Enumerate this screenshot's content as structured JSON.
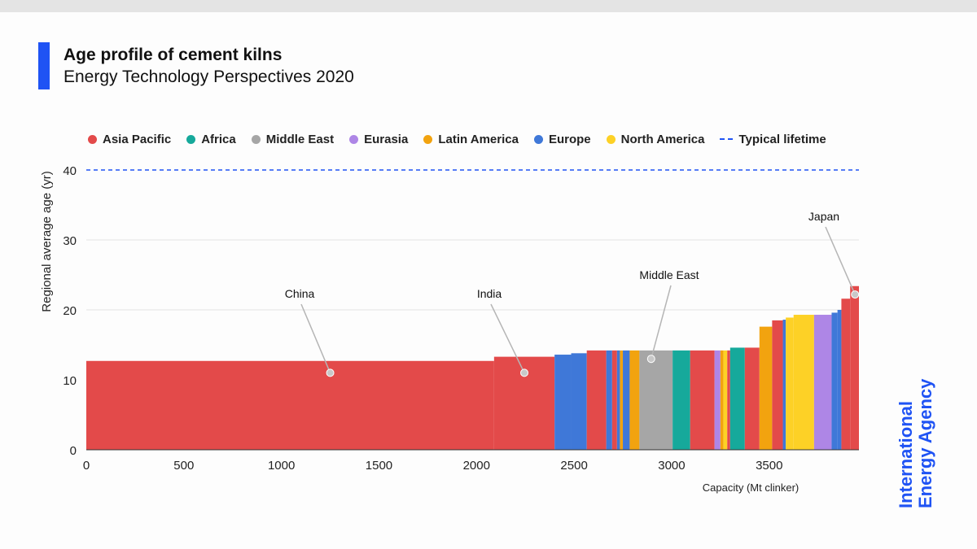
{
  "header": {
    "title": "Age profile of cement kilns",
    "subtitle": "Energy Technology Perspectives 2020"
  },
  "brand": {
    "line1": "International",
    "line2": "Energy Agency"
  },
  "legend": [
    {
      "label": "Asia Pacific",
      "color": "#e34a4a"
    },
    {
      "label": "Africa",
      "color": "#16a99b"
    },
    {
      "label": "Middle East",
      "color": "#a6a6a6"
    },
    {
      "label": "Eurasia",
      "color": "#ae86e6"
    },
    {
      "label": "Latin America",
      "color": "#f2a30f"
    },
    {
      "label": "Europe",
      "color": "#3f78d8"
    },
    {
      "label": "North America",
      "color": "#fdd126"
    },
    {
      "label": "Typical lifetime",
      "color": "#1f53f4",
      "style": "dashed"
    }
  ],
  "chart_data": {
    "type": "bar",
    "subtype": "variable-width (capacity-weighted) bars",
    "title": "Age profile of cement kilns",
    "xlabel": "Capacity (Mt clinker)",
    "ylabel": "Regional average age (yr)",
    "xlim": [
      0,
      3960
    ],
    "ylim": [
      0,
      40
    ],
    "x_ticks": [
      0,
      500,
      1000,
      1500,
      2000,
      2500,
      3000,
      3500
    ],
    "y_ticks": [
      0,
      10,
      20,
      30,
      40
    ],
    "grid": true,
    "legend_position": "top",
    "reference_line": {
      "name": "Typical lifetime",
      "y": 40,
      "style": "dashed",
      "color": "#1f53f4"
    },
    "colors": {
      "Asia Pacific": "#e34a4a",
      "Africa": "#16a99b",
      "Middle East": "#a6a6a6",
      "Eurasia": "#ae86e6",
      "Latin America": "#f2a30f",
      "Europe": "#3f78d8",
      "North America": "#fdd126"
    },
    "bars": [
      {
        "x0": 0,
        "x1": 2090,
        "age": 12.7,
        "region": "Asia Pacific",
        "label": "China"
      },
      {
        "x0": 2090,
        "x1": 2400,
        "age": 13.3,
        "region": "Asia Pacific",
        "label": "India"
      },
      {
        "x0": 2400,
        "x1": 2485,
        "age": 13.6,
        "region": "Europe"
      },
      {
        "x0": 2485,
        "x1": 2565,
        "age": 13.8,
        "region": "Europe"
      },
      {
        "x0": 2565,
        "x1": 2665,
        "age": 14.2,
        "region": "Asia Pacific"
      },
      {
        "x0": 2665,
        "x1": 2695,
        "age": 14.2,
        "region": "Europe"
      },
      {
        "x0": 2695,
        "x1": 2720,
        "age": 14.2,
        "region": "Asia Pacific"
      },
      {
        "x0": 2720,
        "x1": 2735,
        "age": 14.2,
        "region": "Europe"
      },
      {
        "x0": 2735,
        "x1": 2750,
        "age": 14.2,
        "region": "Latin America"
      },
      {
        "x0": 2750,
        "x1": 2785,
        "age": 14.2,
        "region": "Europe"
      },
      {
        "x0": 2785,
        "x1": 2835,
        "age": 14.2,
        "region": "Latin America"
      },
      {
        "x0": 2835,
        "x1": 3005,
        "age": 14.2,
        "region": "Middle East",
        "label": "Middle East"
      },
      {
        "x0": 3005,
        "x1": 3095,
        "age": 14.2,
        "region": "Africa"
      },
      {
        "x0": 3095,
        "x1": 3220,
        "age": 14.2,
        "region": "Asia Pacific"
      },
      {
        "x0": 3220,
        "x1": 3250,
        "age": 14.2,
        "region": "Eurasia"
      },
      {
        "x0": 3250,
        "x1": 3265,
        "age": 14.2,
        "region": "Latin America"
      },
      {
        "x0": 3265,
        "x1": 3285,
        "age": 14.2,
        "region": "North America"
      },
      {
        "x0": 3285,
        "x1": 3300,
        "age": 14.2,
        "region": "Asia Pacific"
      },
      {
        "x0": 3300,
        "x1": 3375,
        "age": 14.6,
        "region": "Africa"
      },
      {
        "x0": 3375,
        "x1": 3450,
        "age": 14.6,
        "region": "Asia Pacific"
      },
      {
        "x0": 3450,
        "x1": 3515,
        "age": 17.6,
        "region": "Latin America"
      },
      {
        "x0": 3515,
        "x1": 3570,
        "age": 18.5,
        "region": "Asia Pacific"
      },
      {
        "x0": 3570,
        "x1": 3585,
        "age": 18.6,
        "region": "Europe"
      },
      {
        "x0": 3585,
        "x1": 3625,
        "age": 18.9,
        "region": "North America"
      },
      {
        "x0": 3625,
        "x1": 3730,
        "age": 19.3,
        "region": "North America"
      },
      {
        "x0": 3730,
        "x1": 3820,
        "age": 19.3,
        "region": "Eurasia"
      },
      {
        "x0": 3820,
        "x1": 3850,
        "age": 19.6,
        "region": "Europe"
      },
      {
        "x0": 3850,
        "x1": 3870,
        "age": 20.0,
        "region": "Europe"
      },
      {
        "x0": 3870,
        "x1": 3915,
        "age": 21.6,
        "region": "Asia Pacific"
      },
      {
        "x0": 3915,
        "x1": 3960,
        "age": 23.4,
        "region": "Asia Pacific",
        "label": "Japan"
      }
    ],
    "annotations": [
      {
        "text": "China",
        "x": 1250,
        "y": 11.0
      },
      {
        "text": "India",
        "x": 2245,
        "y": 11.0
      },
      {
        "text": "Middle East",
        "x": 2895,
        "y": 13.0
      },
      {
        "text": "Japan",
        "x": 3940,
        "y": 22.2
      }
    ]
  }
}
